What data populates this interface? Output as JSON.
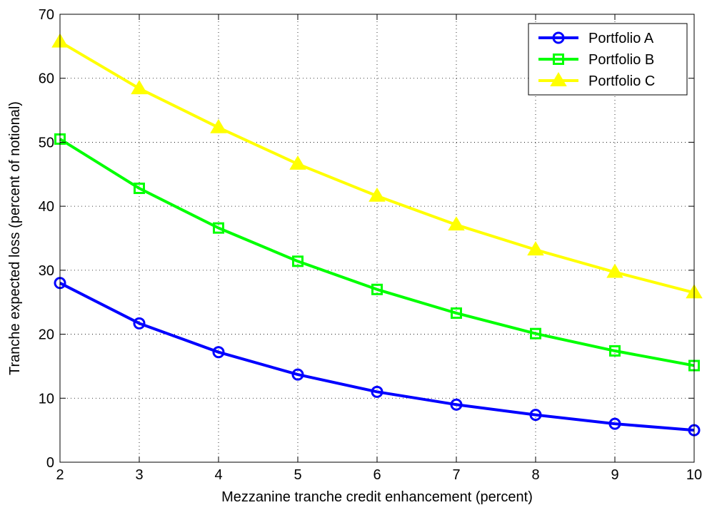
{
  "chart_data": {
    "type": "line",
    "xlabel": "Mezzanine tranche credit enhancement (percent)",
    "ylabel": "Tranche expected loss (percent of notional)",
    "xlim": [
      2,
      10
    ],
    "ylim": [
      0,
      70
    ],
    "xticks": [
      2,
      3,
      4,
      5,
      6,
      7,
      8,
      9,
      10
    ],
    "yticks": [
      0,
      10,
      20,
      30,
      40,
      50,
      60,
      70
    ],
    "grid": true,
    "legend_position": "top-right",
    "x": [
      2,
      3,
      4,
      5,
      6,
      7,
      8,
      9,
      10
    ],
    "series": [
      {
        "name": "Portfolio A",
        "color": "#0000ff",
        "marker": "circle",
        "values": [
          28.0,
          21.7,
          17.2,
          13.7,
          11.0,
          9.0,
          7.4,
          6.0,
          5.0
        ]
      },
      {
        "name": "Portfolio B",
        "color": "#00ff00",
        "marker": "square",
        "values": [
          50.5,
          42.8,
          36.6,
          31.4,
          27.0,
          23.3,
          20.1,
          17.4,
          15.1
        ]
      },
      {
        "name": "Portfolio C",
        "color": "#ffff00",
        "marker": "triangle",
        "values": [
          65.7,
          58.4,
          52.3,
          46.6,
          41.6,
          37.1,
          33.2,
          29.7,
          26.5
        ]
      }
    ]
  }
}
